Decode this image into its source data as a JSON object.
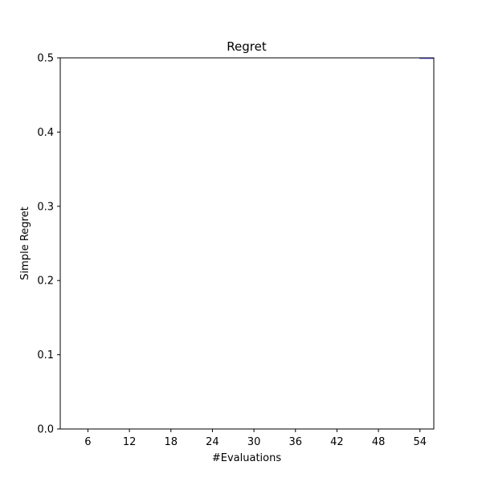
{
  "chart_data": {
    "type": "area",
    "title": "Regret",
    "xlabel": "#Evaluations",
    "ylabel": "Simple Regret",
    "xlim": [
      2,
      56
    ],
    "ylim": [
      0.0,
      0.5
    ],
    "xticks": [
      6,
      12,
      18,
      24,
      30,
      36,
      42,
      48,
      54
    ],
    "yticks": [
      0.0,
      0.1,
      0.2,
      0.3,
      0.4,
      0.5
    ],
    "ytick_labels": [
      "0.0",
      "0.1",
      "0.2",
      "0.3",
      "0.4",
      "0.5"
    ],
    "grid": false,
    "series": [
      {
        "x": [
          54,
          56
        ],
        "lower": [
          0.4995,
          0.4995
        ],
        "upper": [
          0.503,
          0.503
        ],
        "line": [
          0.5,
          0.5
        ],
        "color": "#0000ff",
        "fill_color": "#9c9cf0"
      }
    ]
  }
}
